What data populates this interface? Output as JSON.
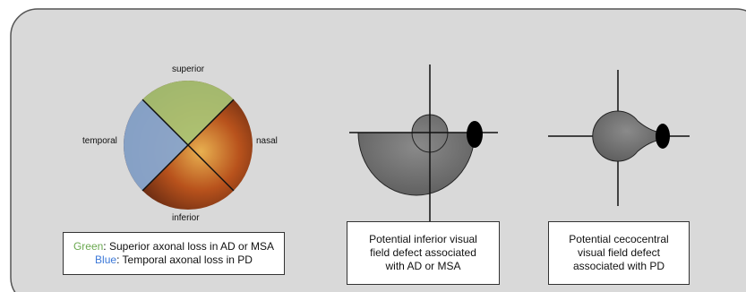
{
  "fundus": {
    "superior": "superior",
    "temporal": "temporal",
    "nasal": "nasal",
    "inferior": "inferior"
  },
  "legend": [
    {
      "key": "Green",
      "text": ": Superior axonal loss in AD or MSA"
    },
    {
      "key": "Blue",
      "text": ": Temporal axonal loss in PD"
    }
  ],
  "captions": [
    {
      "lines": [
        "Potential inferior visual",
        "field defect associated",
        "with AD or MSA"
      ]
    },
    {
      "lines": [
        "Potential cecocentral",
        "visual field defect",
        "associated with PD"
      ]
    }
  ]
}
